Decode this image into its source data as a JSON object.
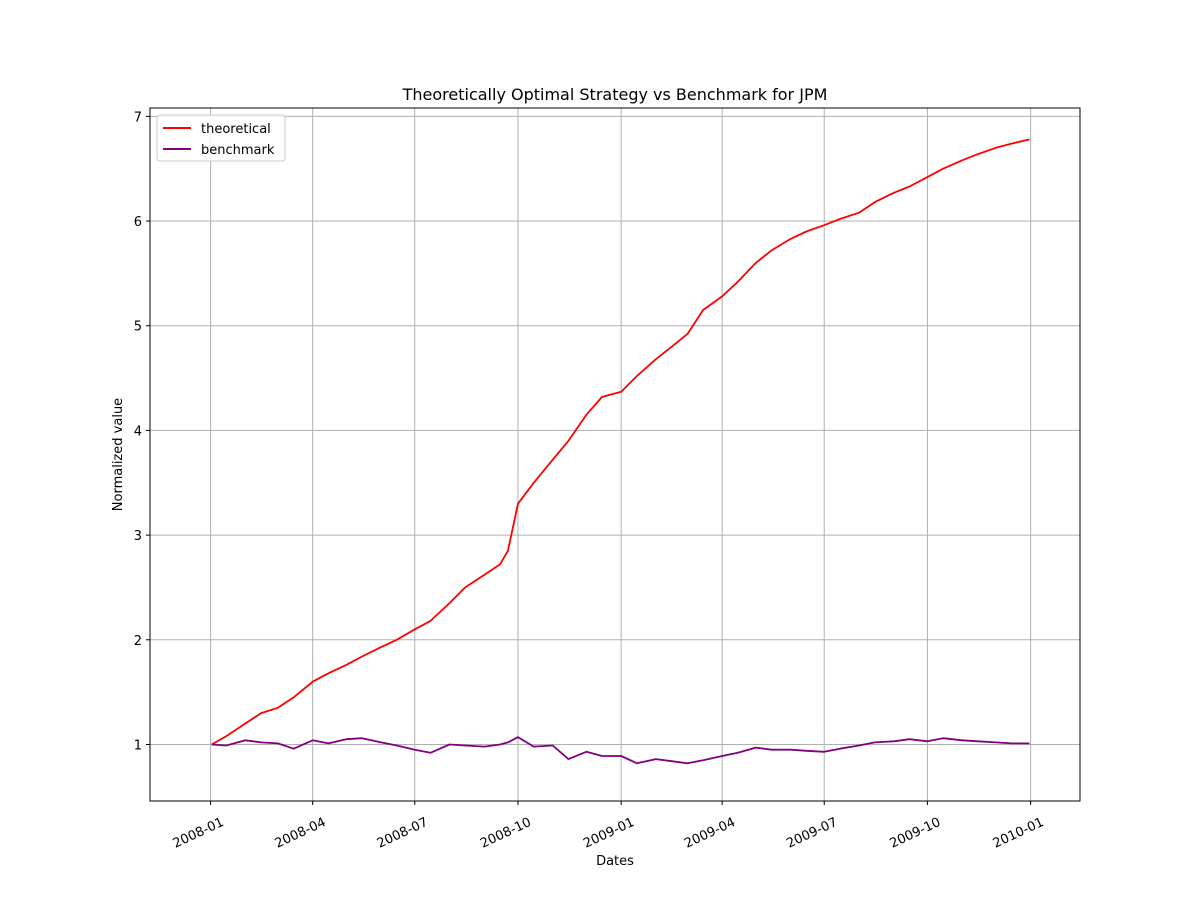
{
  "chart_data": {
    "type": "line",
    "title": "Theoretically Optimal Strategy vs Benchmark for JPM",
    "xlabel": "Dates",
    "ylabel": "Normalized value",
    "xlim": [
      "2007-11-08",
      "2010-02-14"
    ],
    "ylim": [
      0.46,
      7.08
    ],
    "x_ticks": [
      "2008-01",
      "2008-04",
      "2008-07",
      "2008-10",
      "2009-01",
      "2009-04",
      "2009-07",
      "2009-10",
      "2010-01"
    ],
    "y_ticks": [
      1,
      2,
      3,
      4,
      5,
      6,
      7
    ],
    "grid": true,
    "legend_position": "upper left",
    "series": [
      {
        "name": "theoretical",
        "color": "#ff0000",
        "x": [
          "2008-01-02",
          "2008-01-15",
          "2008-02-01",
          "2008-02-15",
          "2008-03-01",
          "2008-03-15",
          "2008-04-01",
          "2008-04-15",
          "2008-05-01",
          "2008-05-15",
          "2008-06-01",
          "2008-06-15",
          "2008-07-01",
          "2008-07-15",
          "2008-08-01",
          "2008-08-15",
          "2008-09-01",
          "2008-09-15",
          "2008-09-22",
          "2008-10-01",
          "2008-10-15",
          "2008-11-01",
          "2008-11-15",
          "2008-12-01",
          "2008-12-15",
          "2009-01-01",
          "2009-01-15",
          "2009-02-01",
          "2009-02-15",
          "2009-03-01",
          "2009-03-15",
          "2009-04-01",
          "2009-04-15",
          "2009-05-01",
          "2009-05-15",
          "2009-06-01",
          "2009-06-15",
          "2009-07-01",
          "2009-07-15",
          "2009-08-01",
          "2009-08-15",
          "2009-09-01",
          "2009-09-15",
          "2009-10-01",
          "2009-10-15",
          "2009-11-01",
          "2009-11-15",
          "2009-12-01",
          "2009-12-15",
          "2009-12-31"
        ],
        "values": [
          1.0,
          1.08,
          1.2,
          1.3,
          1.35,
          1.45,
          1.6,
          1.68,
          1.76,
          1.84,
          1.93,
          2.0,
          2.1,
          2.18,
          2.35,
          2.5,
          2.62,
          2.72,
          2.85,
          3.3,
          3.5,
          3.72,
          3.9,
          4.15,
          4.32,
          4.37,
          4.52,
          4.68,
          4.8,
          4.92,
          5.15,
          5.28,
          5.42,
          5.6,
          5.72,
          5.83,
          5.9,
          5.96,
          6.02,
          6.08,
          6.18,
          6.27,
          6.33,
          6.42,
          6.5,
          6.58,
          6.64,
          6.7,
          6.74,
          6.78
        ]
      },
      {
        "name": "benchmark",
        "color": "#800080",
        "x": [
          "2008-01-02",
          "2008-01-15",
          "2008-02-01",
          "2008-02-15",
          "2008-03-01",
          "2008-03-15",
          "2008-04-01",
          "2008-04-15",
          "2008-05-01",
          "2008-05-15",
          "2008-06-01",
          "2008-06-15",
          "2008-07-01",
          "2008-07-15",
          "2008-08-01",
          "2008-08-15",
          "2008-09-01",
          "2008-09-15",
          "2008-09-22",
          "2008-10-01",
          "2008-10-15",
          "2008-11-01",
          "2008-11-15",
          "2008-12-01",
          "2008-12-15",
          "2009-01-01",
          "2009-01-15",
          "2009-02-01",
          "2009-02-15",
          "2009-03-01",
          "2009-03-15",
          "2009-04-01",
          "2009-04-15",
          "2009-05-01",
          "2009-05-15",
          "2009-06-01",
          "2009-06-15",
          "2009-07-01",
          "2009-07-15",
          "2009-08-01",
          "2009-08-15",
          "2009-09-01",
          "2009-09-15",
          "2009-10-01",
          "2009-10-15",
          "2009-11-01",
          "2009-11-15",
          "2009-12-01",
          "2009-12-15",
          "2009-12-31"
        ],
        "values": [
          1.0,
          0.99,
          1.04,
          1.02,
          1.01,
          0.96,
          1.04,
          1.01,
          1.05,
          1.06,
          1.02,
          0.99,
          0.95,
          0.92,
          1.0,
          0.99,
          0.98,
          1.0,
          1.02,
          1.07,
          0.98,
          0.99,
          0.86,
          0.93,
          0.89,
          0.89,
          0.82,
          0.86,
          0.84,
          0.82,
          0.85,
          0.89,
          0.92,
          0.97,
          0.95,
          0.95,
          0.94,
          0.93,
          0.96,
          0.99,
          1.02,
          1.03,
          1.05,
          1.03,
          1.06,
          1.04,
          1.03,
          1.02,
          1.01,
          1.01
        ]
      }
    ]
  }
}
